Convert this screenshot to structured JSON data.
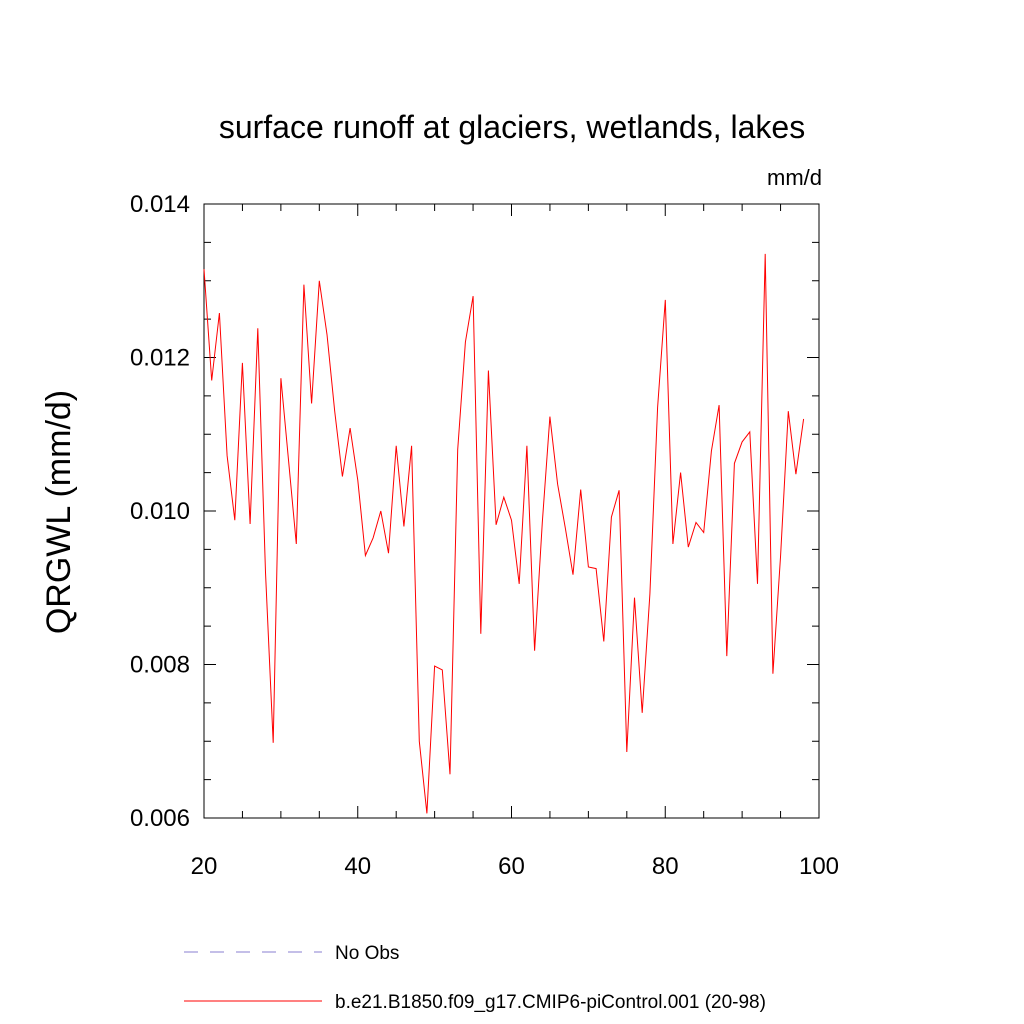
{
  "chart_data": {
    "type": "line",
    "title": "surface runoff at glaciers, wetlands, lakes",
    "units_label": "mm/d",
    "ylabel": "QRGWL  (mm/d)",
    "xlabel": "",
    "xlim": [
      20,
      100
    ],
    "ylim": [
      0.006,
      0.014
    ],
    "x_ticks": [
      20,
      40,
      60,
      80,
      100
    ],
    "x_tick_labels": [
      "20",
      "40",
      "60",
      "80",
      "100"
    ],
    "y_ticks": [
      0.006,
      0.008,
      0.01,
      0.012,
      0.014
    ],
    "y_tick_labels": [
      "0.006",
      "0.008",
      "0.010",
      "0.012",
      "0.014"
    ],
    "grid": false,
    "legend_position": "bottom",
    "series": [
      {
        "name": "No Obs",
        "color": "#8a7fd0",
        "style": "dashed",
        "x": [],
        "values": []
      },
      {
        "name": "b.e21.B1850.f09_g17.CMIP6-piControl.001 (20-98)",
        "color": "#ff0000",
        "style": "solid",
        "x": [
          20,
          21,
          22,
          23,
          24,
          25,
          26,
          27,
          28,
          29,
          30,
          31,
          32,
          33,
          34,
          35,
          36,
          37,
          38,
          39,
          40,
          41,
          42,
          43,
          44,
          45,
          46,
          47,
          48,
          49,
          50,
          51,
          52,
          53,
          54,
          55,
          56,
          57,
          58,
          59,
          60,
          61,
          62,
          63,
          64,
          65,
          66,
          67,
          68,
          69,
          70,
          71,
          72,
          73,
          74,
          75,
          76,
          77,
          78,
          79,
          80,
          81,
          82,
          83,
          84,
          85,
          86,
          87,
          88,
          89,
          90,
          91,
          92,
          93,
          94,
          95,
          96,
          97,
          98
        ],
        "values": [
          0.01315,
          0.0117,
          0.01258,
          0.01072,
          0.00988,
          0.01193,
          0.00983,
          0.01238,
          0.0092,
          0.00698,
          0.01173,
          0.01065,
          0.00957,
          0.01295,
          0.0114,
          0.013,
          0.0123,
          0.0113,
          0.01045,
          0.01108,
          0.0104,
          0.00942,
          0.00965,
          0.01,
          0.00945,
          0.01085,
          0.0098,
          0.01085,
          0.007,
          0.00606,
          0.00798,
          0.00793,
          0.00657,
          0.0108,
          0.0122,
          0.0128,
          0.0084,
          0.01183,
          0.00982,
          0.01018,
          0.00988,
          0.00905,
          0.01085,
          0.00818,
          0.00985,
          0.01123,
          0.01035,
          0.00978,
          0.00917,
          0.01028,
          0.00927,
          0.00925,
          0.0083,
          0.00992,
          0.01027,
          0.00686,
          0.00887,
          0.00737,
          0.00892,
          0.01135,
          0.01275,
          0.00957,
          0.0105,
          0.00953,
          0.00985,
          0.00972,
          0.01078,
          0.01138,
          0.00811,
          0.01062,
          0.0109,
          0.01103,
          0.00905,
          0.01335,
          0.00788,
          0.00942,
          0.0113,
          0.01048,
          0.0112
        ]
      }
    ]
  }
}
